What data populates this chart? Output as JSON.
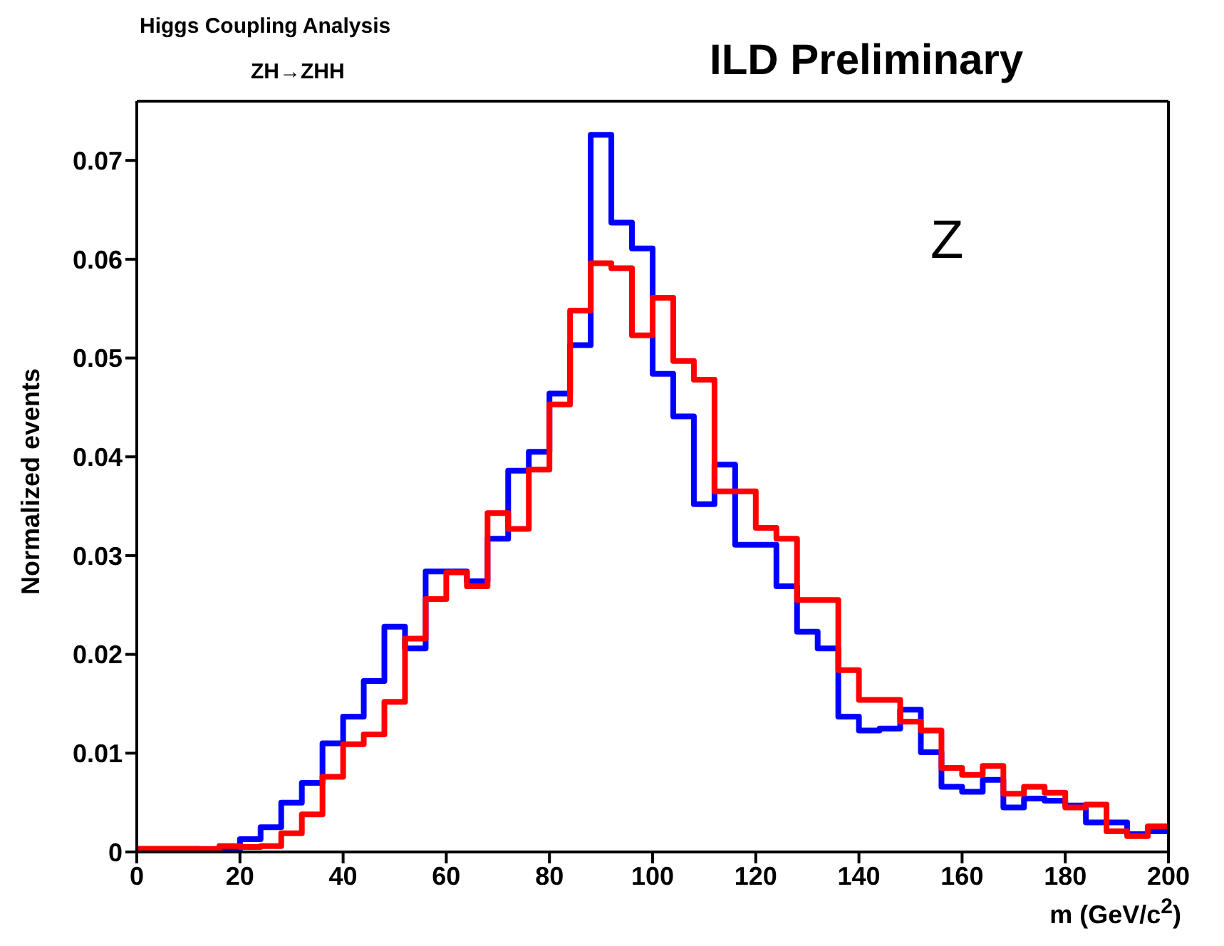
{
  "chart_data": {
    "type": "histogram",
    "title": "ILD Preliminary",
    "xlabel": "m (GeV/c$^{2}$)",
    "ylabel": "Normalized events",
    "annotations": [
      "Higgs Coupling Analysis",
      "ZH→ZHH",
      "Z"
    ],
    "bins": [
      0,
      4,
      8,
      12,
      16,
      20,
      24,
      28,
      32,
      36,
      40,
      44,
      48,
      52,
      56,
      60,
      64,
      68,
      72,
      76,
      80,
      84,
      88,
      92,
      96,
      100,
      104,
      108,
      112,
      116,
      120,
      124,
      128,
      132,
      136,
      140,
      144,
      148,
      152,
      156,
      160,
      164,
      168,
      172,
      176,
      180,
      184,
      188,
      192,
      196,
      200
    ],
    "series": [
      {
        "color": "#0000ff",
        "values": [
          0.0003,
          0.0003,
          0.0003,
          0.0002,
          0.0001,
          0.0013,
          0.0025,
          0.005,
          0.007,
          0.011,
          0.0137,
          0.0173,
          0.0228,
          0.0206,
          0.0284,
          0.0284,
          0.0274,
          0.0317,
          0.0386,
          0.0405,
          0.0464,
          0.0513,
          0.0726,
          0.0637,
          0.0611,
          0.0484,
          0.0441,
          0.0352,
          0.0392,
          0.0311,
          0.0311,
          0.0269,
          0.0223,
          0.0206,
          0.0137,
          0.0123,
          0.0125,
          0.0144,
          0.0101,
          0.0066,
          0.0061,
          0.0073,
          0.0045,
          0.0054,
          0.0052,
          0.0047,
          0.003,
          0.003,
          0.0018,
          0.0021
        ]
      },
      {
        "color": "#ff0000",
        "values": [
          0.0003,
          0.0003,
          0.0003,
          0.0003,
          0.0006,
          0.0005,
          0.0006,
          0.0019,
          0.0038,
          0.0076,
          0.0109,
          0.0119,
          0.0152,
          0.0216,
          0.0256,
          0.0283,
          0.0269,
          0.0343,
          0.0327,
          0.0387,
          0.0453,
          0.0548,
          0.0596,
          0.0591,
          0.0523,
          0.0561,
          0.0497,
          0.0478,
          0.0365,
          0.0365,
          0.0328,
          0.0317,
          0.0255,
          0.0255,
          0.0184,
          0.0154,
          0.0154,
          0.0132,
          0.0123,
          0.0085,
          0.0078,
          0.0087,
          0.0059,
          0.0066,
          0.006,
          0.0045,
          0.0048,
          0.0021,
          0.0016,
          0.0026
        ]
      }
    ],
    "xlim": [
      0,
      200
    ],
    "xticks": [
      0,
      20,
      40,
      60,
      80,
      100,
      120,
      140,
      160,
      180,
      200
    ],
    "ylim": [
      0,
      0.076
    ],
    "yticks": [
      0,
      0.01,
      0.02,
      0.03,
      0.04,
      0.05,
      0.06,
      0.07
    ],
    "grid": false
  }
}
